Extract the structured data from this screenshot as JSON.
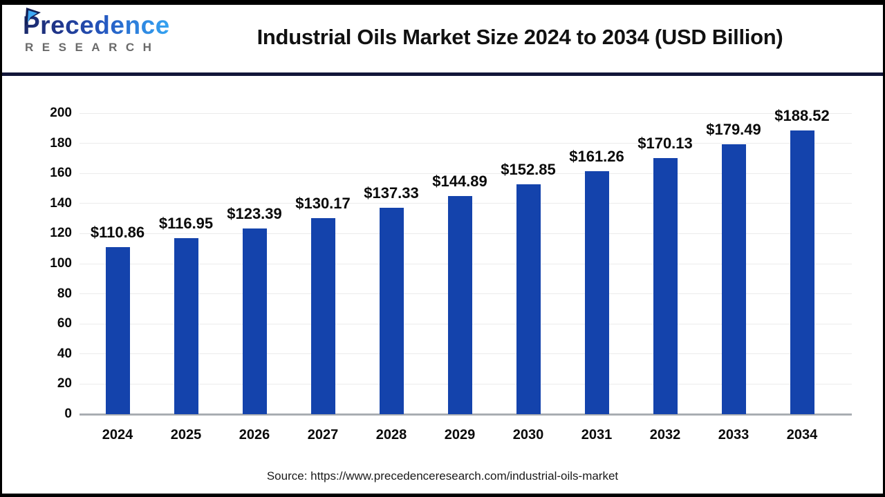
{
  "header": {
    "logo": {
      "brand": "Precedence",
      "subtitle": "RESEARCH",
      "brand_color_dark": "#1b2a6b",
      "brand_color_light": "#35a4f2",
      "subtitle_color": "#6a6a6a"
    },
    "title": "Industrial Oils Market Size 2024 to 2034 (USD Billion)"
  },
  "chart_data": {
    "type": "bar",
    "title": "Industrial Oils Market Size 2024 to 2034 (USD Billion)",
    "unit": "USD Billion",
    "categories": [
      "2024",
      "2025",
      "2026",
      "2027",
      "2028",
      "2029",
      "2030",
      "2031",
      "2032",
      "2033",
      "2034"
    ],
    "values": [
      110.86,
      116.95,
      123.39,
      130.17,
      137.33,
      144.89,
      152.85,
      161.26,
      170.13,
      179.49,
      188.52
    ],
    "value_labels": [
      "$110.86",
      "$116.95",
      "$123.39",
      "$130.17",
      "$137.33",
      "$144.89",
      "$152.85",
      "$161.26",
      "$170.13",
      "$179.49",
      "$188.52"
    ],
    "xlabel": "",
    "ylabel": "",
    "ylim": [
      0,
      200
    ],
    "ytick_step": 20,
    "grid": true,
    "legend_position": "none",
    "bar_color": "#1443ac",
    "gridline_color": "#ebebeb",
    "axis_line_color": "#a9adb2"
  },
  "footer": {
    "source": "Source: https://www.precedenceresearch.com/industrial-oils-market"
  }
}
